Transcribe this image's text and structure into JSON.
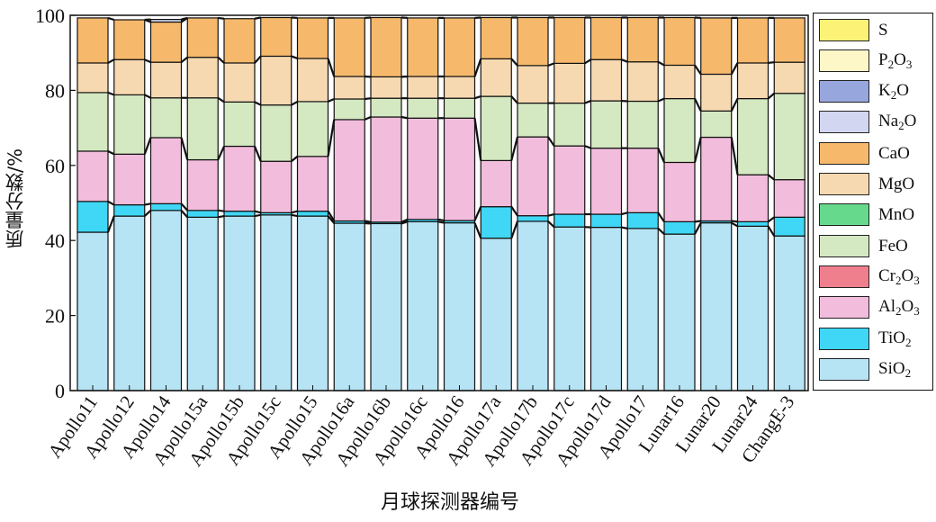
{
  "chart_data": {
    "type": "bar",
    "stacked": true,
    "title": "",
    "xlabel": "月球探测器编号",
    "ylabel": "质量分数/%",
    "ylim": [
      0,
      100
    ],
    "yticks": [
      0,
      20,
      40,
      60,
      80,
      100
    ],
    "grid": false,
    "legend_position": "right",
    "categories": [
      "Apollo11",
      "Apollo12",
      "Apollo14",
      "Apollo15a",
      "Apollo15b",
      "Apollo15c",
      "Apollo15",
      "Apollo16a",
      "Apollo16b",
      "Apollo16c",
      "Apollo16",
      "Apollo17a",
      "Apollo17b",
      "Apollo17c",
      "Apollo17d",
      "Apollo17",
      "Lunar16",
      "Lunar20",
      "Lunar24",
      "ChangE-3"
    ],
    "series": [
      {
        "name": "SiO2",
        "label_main": "SiO",
        "label_sub": "2",
        "label_tail": "",
        "color": "#b6e4f5",
        "values": [
          42.2,
          46.5,
          48.0,
          46.2,
          46.5,
          46.8,
          46.5,
          44.6,
          44.5,
          45.0,
          44.7,
          40.6,
          45.1,
          43.6,
          43.5,
          43.2,
          41.7,
          44.7,
          43.8,
          41.2
        ]
      },
      {
        "name": "TiO2",
        "label_main": "TiO",
        "label_sub": "2",
        "label_tail": "",
        "color": "#3fd7f5",
        "values": [
          8.2,
          3.0,
          1.8,
          1.8,
          1.3,
          0.6,
          1.3,
          0.6,
          0.4,
          0.6,
          0.6,
          8.4,
          1.5,
          3.4,
          3.5,
          4.2,
          3.3,
          0.5,
          1.2,
          5.0
        ]
      },
      {
        "name": "Al2O3",
        "label_main": "Al",
        "label_sub": "2",
        "label_tail": "O3",
        "color": "#f2bcdc",
        "values": [
          13.4,
          13.5,
          17.6,
          13.5,
          17.3,
          13.7,
          14.6,
          27.0,
          28.0,
          27.0,
          27.3,
          12.3,
          21.0,
          18.2,
          17.6,
          17.2,
          15.8,
          22.3,
          12.5,
          10.0
        ]
      },
      {
        "name": "Cr2O3",
        "label_main": "Cr",
        "label_sub": "2",
        "label_tail": "O3",
        "color": "#f07f8e",
        "values": [
          0,
          0,
          0,
          0,
          0,
          0,
          0,
          0,
          0,
          0,
          0,
          0,
          0,
          0,
          0,
          0,
          0,
          0,
          0,
          0
        ]
      },
      {
        "name": "FeO",
        "label_main": "FeO",
        "label_sub": "",
        "label_tail": "",
        "color": "#d4e8c2",
        "values": [
          15.6,
          15.8,
          10.6,
          16.5,
          11.8,
          15.0,
          14.6,
          5.5,
          5.0,
          5.3,
          5.3,
          17.1,
          9.0,
          11.4,
          12.6,
          12.5,
          17.0,
          7.0,
          20.3,
          23.0
        ]
      },
      {
        "name": "MnO",
        "label_main": "MnO",
        "label_sub": "",
        "label_tail": "",
        "color": "#66d98c",
        "values": [
          0,
          0,
          0,
          0,
          0,
          0,
          0,
          0,
          0,
          0,
          0,
          0,
          0,
          0,
          0,
          0,
          0,
          0,
          0,
          0
        ]
      },
      {
        "name": "MgO",
        "label_main": "MgO",
        "label_sub": "",
        "label_tail": "",
        "color": "#f7d9b1",
        "values": [
          7.9,
          9.4,
          9.5,
          10.8,
          10.4,
          13.0,
          11.5,
          6.0,
          5.7,
          5.8,
          5.8,
          10.0,
          10.0,
          10.6,
          11.0,
          10.5,
          8.9,
          9.8,
          9.5,
          8.3
        ]
      },
      {
        "name": "CaO",
        "label_main": "CaO",
        "label_sub": "",
        "label_tail": "",
        "color": "#f6b96c",
        "values": [
          12.0,
          10.6,
          10.7,
          10.5,
          11.8,
          10.3,
          10.8,
          15.6,
          15.8,
          15.6,
          15.6,
          11.0,
          12.8,
          12.2,
          11.2,
          11.8,
          12.7,
          15.0,
          12.0,
          11.8
        ]
      },
      {
        "name": "Na2O",
        "label_main": "Na",
        "label_sub": "2",
        "label_tail": "O",
        "color": "#d3d6f0",
        "values": [
          0,
          0,
          0.7,
          0,
          0,
          0,
          0,
          0,
          0,
          0,
          0,
          0,
          0,
          0,
          0,
          0,
          0,
          0,
          0,
          0
        ]
      },
      {
        "name": "K2O",
        "label_main": "K",
        "label_sub": "2",
        "label_tail": "O",
        "color": "#98a6de",
        "values": [
          0,
          0,
          0,
          0,
          0,
          0,
          0,
          0,
          0,
          0,
          0,
          0,
          0,
          0,
          0,
          0,
          0,
          0,
          0,
          0
        ]
      },
      {
        "name": "P2O3",
        "label_main": "P",
        "label_sub": "2",
        "label_tail": "O3",
        "color": "#fdf7c8",
        "values": [
          0,
          0,
          0,
          0,
          0,
          0,
          0,
          0,
          0,
          0,
          0,
          0,
          0,
          0,
          0,
          0,
          0,
          0,
          0,
          0
        ]
      },
      {
        "name": "S",
        "label_main": "S",
        "label_sub": "",
        "label_tail": "",
        "color": "#fbf276",
        "values": [
          0,
          0,
          0,
          0,
          0,
          0,
          0,
          0,
          0,
          0,
          0,
          0,
          0,
          0,
          0,
          0,
          0,
          0,
          0,
          0
        ]
      }
    ],
    "legend_order": [
      "S",
      "P2O3",
      "K2O",
      "Na2O",
      "CaO",
      "MgO",
      "MnO",
      "FeO",
      "Cr2O3",
      "Al2O3",
      "TiO2",
      "SiO2"
    ]
  }
}
